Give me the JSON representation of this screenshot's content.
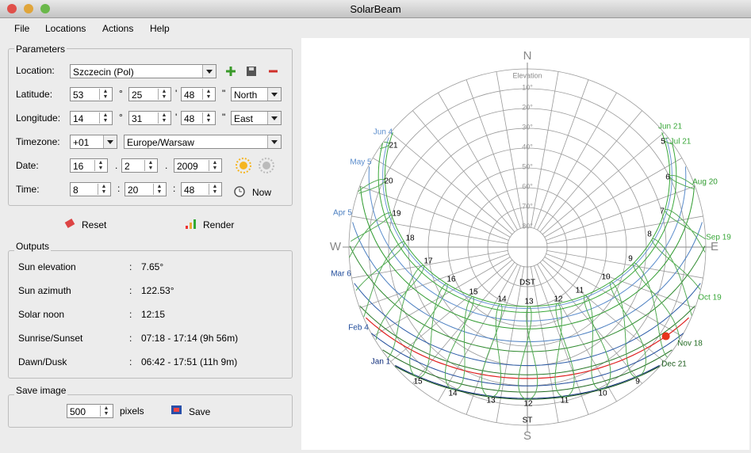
{
  "window": {
    "title": "SolarBeam"
  },
  "menu": [
    "File",
    "Locations",
    "Actions",
    "Help"
  ],
  "parameters": {
    "title": "Parameters",
    "location": {
      "label": "Location:",
      "value": "Szczecin (Pol)"
    },
    "latitude": {
      "label": "Latitude:",
      "deg": "53",
      "min": "25",
      "sec": "48",
      "hemisphere": "North"
    },
    "longitude": {
      "label": "Longitude:",
      "deg": "14",
      "min": "31",
      "sec": "48",
      "hemisphere": "East"
    },
    "symbols": {
      "deg": "°",
      "min": "'",
      "sec": "\""
    },
    "timezone": {
      "label": "Timezone:",
      "offset": "+01",
      "zone": "Europe/Warsaw"
    },
    "date": {
      "label": "Date:",
      "day": "16",
      "month": "2",
      "year": "2009",
      "separator": "."
    },
    "time": {
      "label": "Time:",
      "hour": "8",
      "minute": "20",
      "second": "48",
      "separator": ":",
      "now": "Now"
    }
  },
  "buttons": {
    "reset": "Reset",
    "render": "Render"
  },
  "outputs": {
    "title": "Outputs",
    "separator": ":",
    "rows": [
      [
        "Sun elevation",
        "7.65°"
      ],
      [
        "Sun azimuth",
        "122.53°"
      ],
      [
        "Solar noon",
        "12:15"
      ],
      [
        "Sunrise/Sunset",
        "07:18 - 17:14  (9h 56m)"
      ],
      [
        "Dawn/Dusk",
        "06:42 - 17:51  (11h 9m)"
      ]
    ]
  },
  "save_image": {
    "title": "Save image",
    "size": "500",
    "unit": "pixels",
    "button": "Save"
  },
  "diagram": {
    "compass": {
      "north": "N",
      "east": "E",
      "south": "S",
      "west": "W"
    },
    "elevation_title": "Elevation",
    "elevation_labels": [
      "10°",
      "20°",
      "30°",
      "40°",
      "50°",
      "60°",
      "70°",
      "80°"
    ],
    "dates_first_half": [
      "Jun 4",
      "May 5",
      "Apr 5",
      "Mar 6",
      "Feb 4",
      "Jan 1"
    ],
    "dates_second_half": [
      "Jun 21",
      "Jul 21",
      "Aug 20",
      "Sep 19",
      "Oct 19",
      "Nov 18",
      "Dec 21"
    ],
    "hours_dst": [
      "21",
      "20",
      "19",
      "18",
      "17",
      "16",
      "15",
      "14",
      "13",
      "12",
      "11",
      "10",
      "9",
      "8",
      "7",
      "6",
      "5"
    ],
    "hours_st": [
      "15",
      "14",
      "13",
      "12",
      "11",
      "10",
      "9"
    ],
    "dst_label": "DST",
    "st_label": "ST"
  }
}
